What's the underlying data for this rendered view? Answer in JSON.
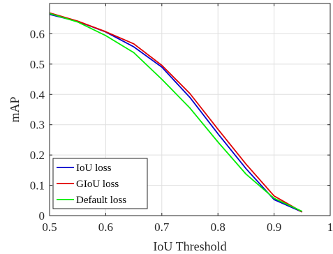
{
  "chart_data": {
    "type": "line",
    "xlabel": "IoU Threshold",
    "ylabel": "mAP",
    "xlim": [
      0.5,
      1.0
    ],
    "ylim": [
      0,
      0.7
    ],
    "xticks": [
      0.5,
      0.6,
      0.7,
      0.8,
      0.9,
      1.0
    ],
    "xtick_labels": [
      "0.5",
      "0.6",
      "0.7",
      "0.8",
      "0.9",
      "1"
    ],
    "yticks": [
      0,
      0.1,
      0.2,
      0.3,
      0.4,
      0.5,
      0.6
    ],
    "ytick_labels": [
      "0",
      "0.1",
      "0.2",
      "0.3",
      "0.4",
      "0.5",
      "0.6"
    ],
    "grid": true,
    "legend_position": "bottom-left",
    "x": [
      0.5,
      0.55,
      0.6,
      0.65,
      0.7,
      0.75,
      0.8,
      0.85,
      0.9,
      0.95
    ],
    "series": [
      {
        "name": "IoU loss",
        "color": "#0000cc",
        "values": [
          0.664,
          0.641,
          0.606,
          0.557,
          0.49,
          0.39,
          0.27,
          0.155,
          0.053,
          0.012
        ]
      },
      {
        "name": "GIoU loss",
        "color": "#e00000",
        "values": [
          0.669,
          0.642,
          0.607,
          0.567,
          0.496,
          0.403,
          0.285,
          0.17,
          0.065,
          0.012
        ]
      },
      {
        "name": "Default loss",
        "color": "#00ee00",
        "values": [
          0.667,
          0.639,
          0.594,
          0.538,
          0.45,
          0.355,
          0.243,
          0.137,
          0.057,
          0.014
        ]
      }
    ]
  }
}
